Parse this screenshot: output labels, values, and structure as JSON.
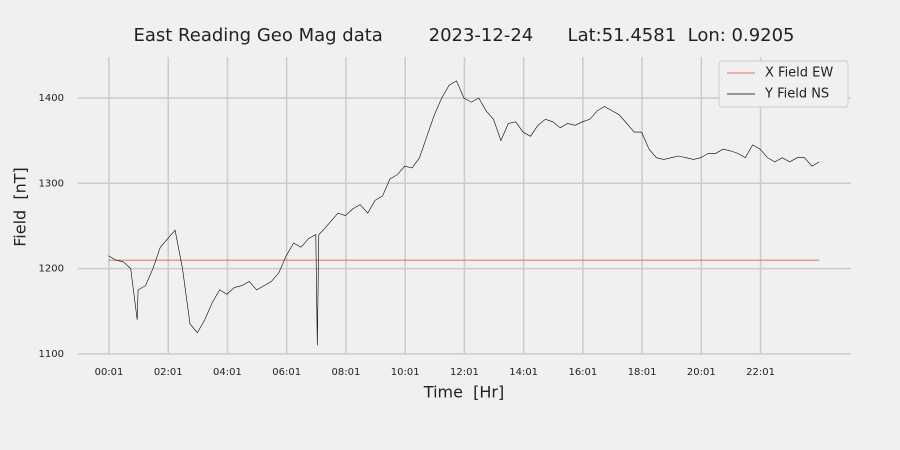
{
  "chart_data": {
    "type": "line",
    "title": "East Reading Geo Mag data        2023-12-24      Lat:51.4581  Lon: 0.9205",
    "x_label": "Time  [Hr]",
    "y_label": "Field  [nT]",
    "xlim": [
      -1.03,
      25.07
    ],
    "ylim": [
      1087,
      1448
    ],
    "xticks": [
      {
        "value": 0.0167,
        "label": "00:01"
      },
      {
        "value": 2.0167,
        "label": "02:01"
      },
      {
        "value": 4.0167,
        "label": "04:01"
      },
      {
        "value": 6.0167,
        "label": "06:01"
      },
      {
        "value": 8.0167,
        "label": "08:01"
      },
      {
        "value": 10.0167,
        "label": "10:01"
      },
      {
        "value": 12.0167,
        "label": "12:01"
      },
      {
        "value": 14.0167,
        "label": "14:01"
      },
      {
        "value": 16.0167,
        "label": "16:01"
      },
      {
        "value": 18.0167,
        "label": "18:01"
      },
      {
        "value": 20.0167,
        "label": "20:01"
      },
      {
        "value": 22.0167,
        "label": "22:01"
      }
    ],
    "yticks": [
      1100,
      1200,
      1300,
      1400
    ],
    "grid": true,
    "legend": "upper right",
    "series": [
      {
        "name": "X Field EW",
        "color": "#e24a33",
        "x": [
          0,
          24
        ],
        "values": [
          1210,
          1210
        ]
      },
      {
        "name": "Y Field NS",
        "color": "#000000",
        "x": [
          0,
          0.25,
          0.5,
          0.75,
          0.97,
          1.0,
          1.25,
          1.5,
          1.75,
          2.0,
          2.25,
          2.5,
          2.75,
          3.0,
          3.25,
          3.5,
          3.75,
          4.0,
          4.25,
          4.5,
          4.75,
          5.0,
          5.25,
          5.5,
          5.75,
          6.0,
          6.25,
          6.5,
          6.75,
          7.0,
          7.05,
          7.1,
          7.25,
          7.5,
          7.75,
          8.0,
          8.25,
          8.5,
          8.75,
          9.0,
          9.25,
          9.5,
          9.75,
          10.0,
          10.25,
          10.5,
          10.75,
          11.0,
          11.25,
          11.5,
          11.75,
          12.0,
          12.25,
          12.5,
          12.75,
          13.0,
          13.25,
          13.5,
          13.75,
          14.0,
          14.25,
          14.5,
          14.75,
          15.0,
          15.25,
          15.5,
          15.75,
          16.0,
          16.25,
          16.5,
          16.75,
          17.0,
          17.25,
          17.5,
          17.75,
          18.0,
          18.25,
          18.5,
          18.75,
          19.0,
          19.25,
          19.5,
          19.75,
          20.0,
          20.25,
          20.5,
          20.75,
          21.0,
          21.25,
          21.5,
          21.75,
          22.0,
          22.25,
          22.5,
          22.75,
          23.0,
          23.25,
          23.5,
          23.75,
          24.0
        ],
        "values": [
          1215,
          1210,
          1208,
          1200,
          1140,
          1175,
          1180,
          1200,
          1225,
          1235,
          1245,
          1200,
          1135,
          1125,
          1140,
          1160,
          1175,
          1170,
          1178,
          1180,
          1185,
          1175,
          1180,
          1185,
          1195,
          1215,
          1230,
          1225,
          1235,
          1240,
          1110,
          1240,
          1245,
          1255,
          1265,
          1262,
          1270,
          1275,
          1265,
          1280,
          1285,
          1305,
          1310,
          1320,
          1318,
          1330,
          1355,
          1380,
          1400,
          1415,
          1420,
          1400,
          1395,
          1400,
          1385,
          1375,
          1350,
          1370,
          1372,
          1360,
          1355,
          1368,
          1375,
          1372,
          1365,
          1370,
          1368,
          1372,
          1375,
          1385,
          1390,
          1385,
          1380,
          1370,
          1360,
          1360,
          1340,
          1330,
          1328,
          1330,
          1332,
          1330,
          1328,
          1330,
          1335,
          1335,
          1340,
          1338,
          1335,
          1330,
          1345,
          1340,
          1330,
          1325,
          1330,
          1325,
          1330,
          1330,
          1320,
          1325
        ]
      }
    ]
  }
}
